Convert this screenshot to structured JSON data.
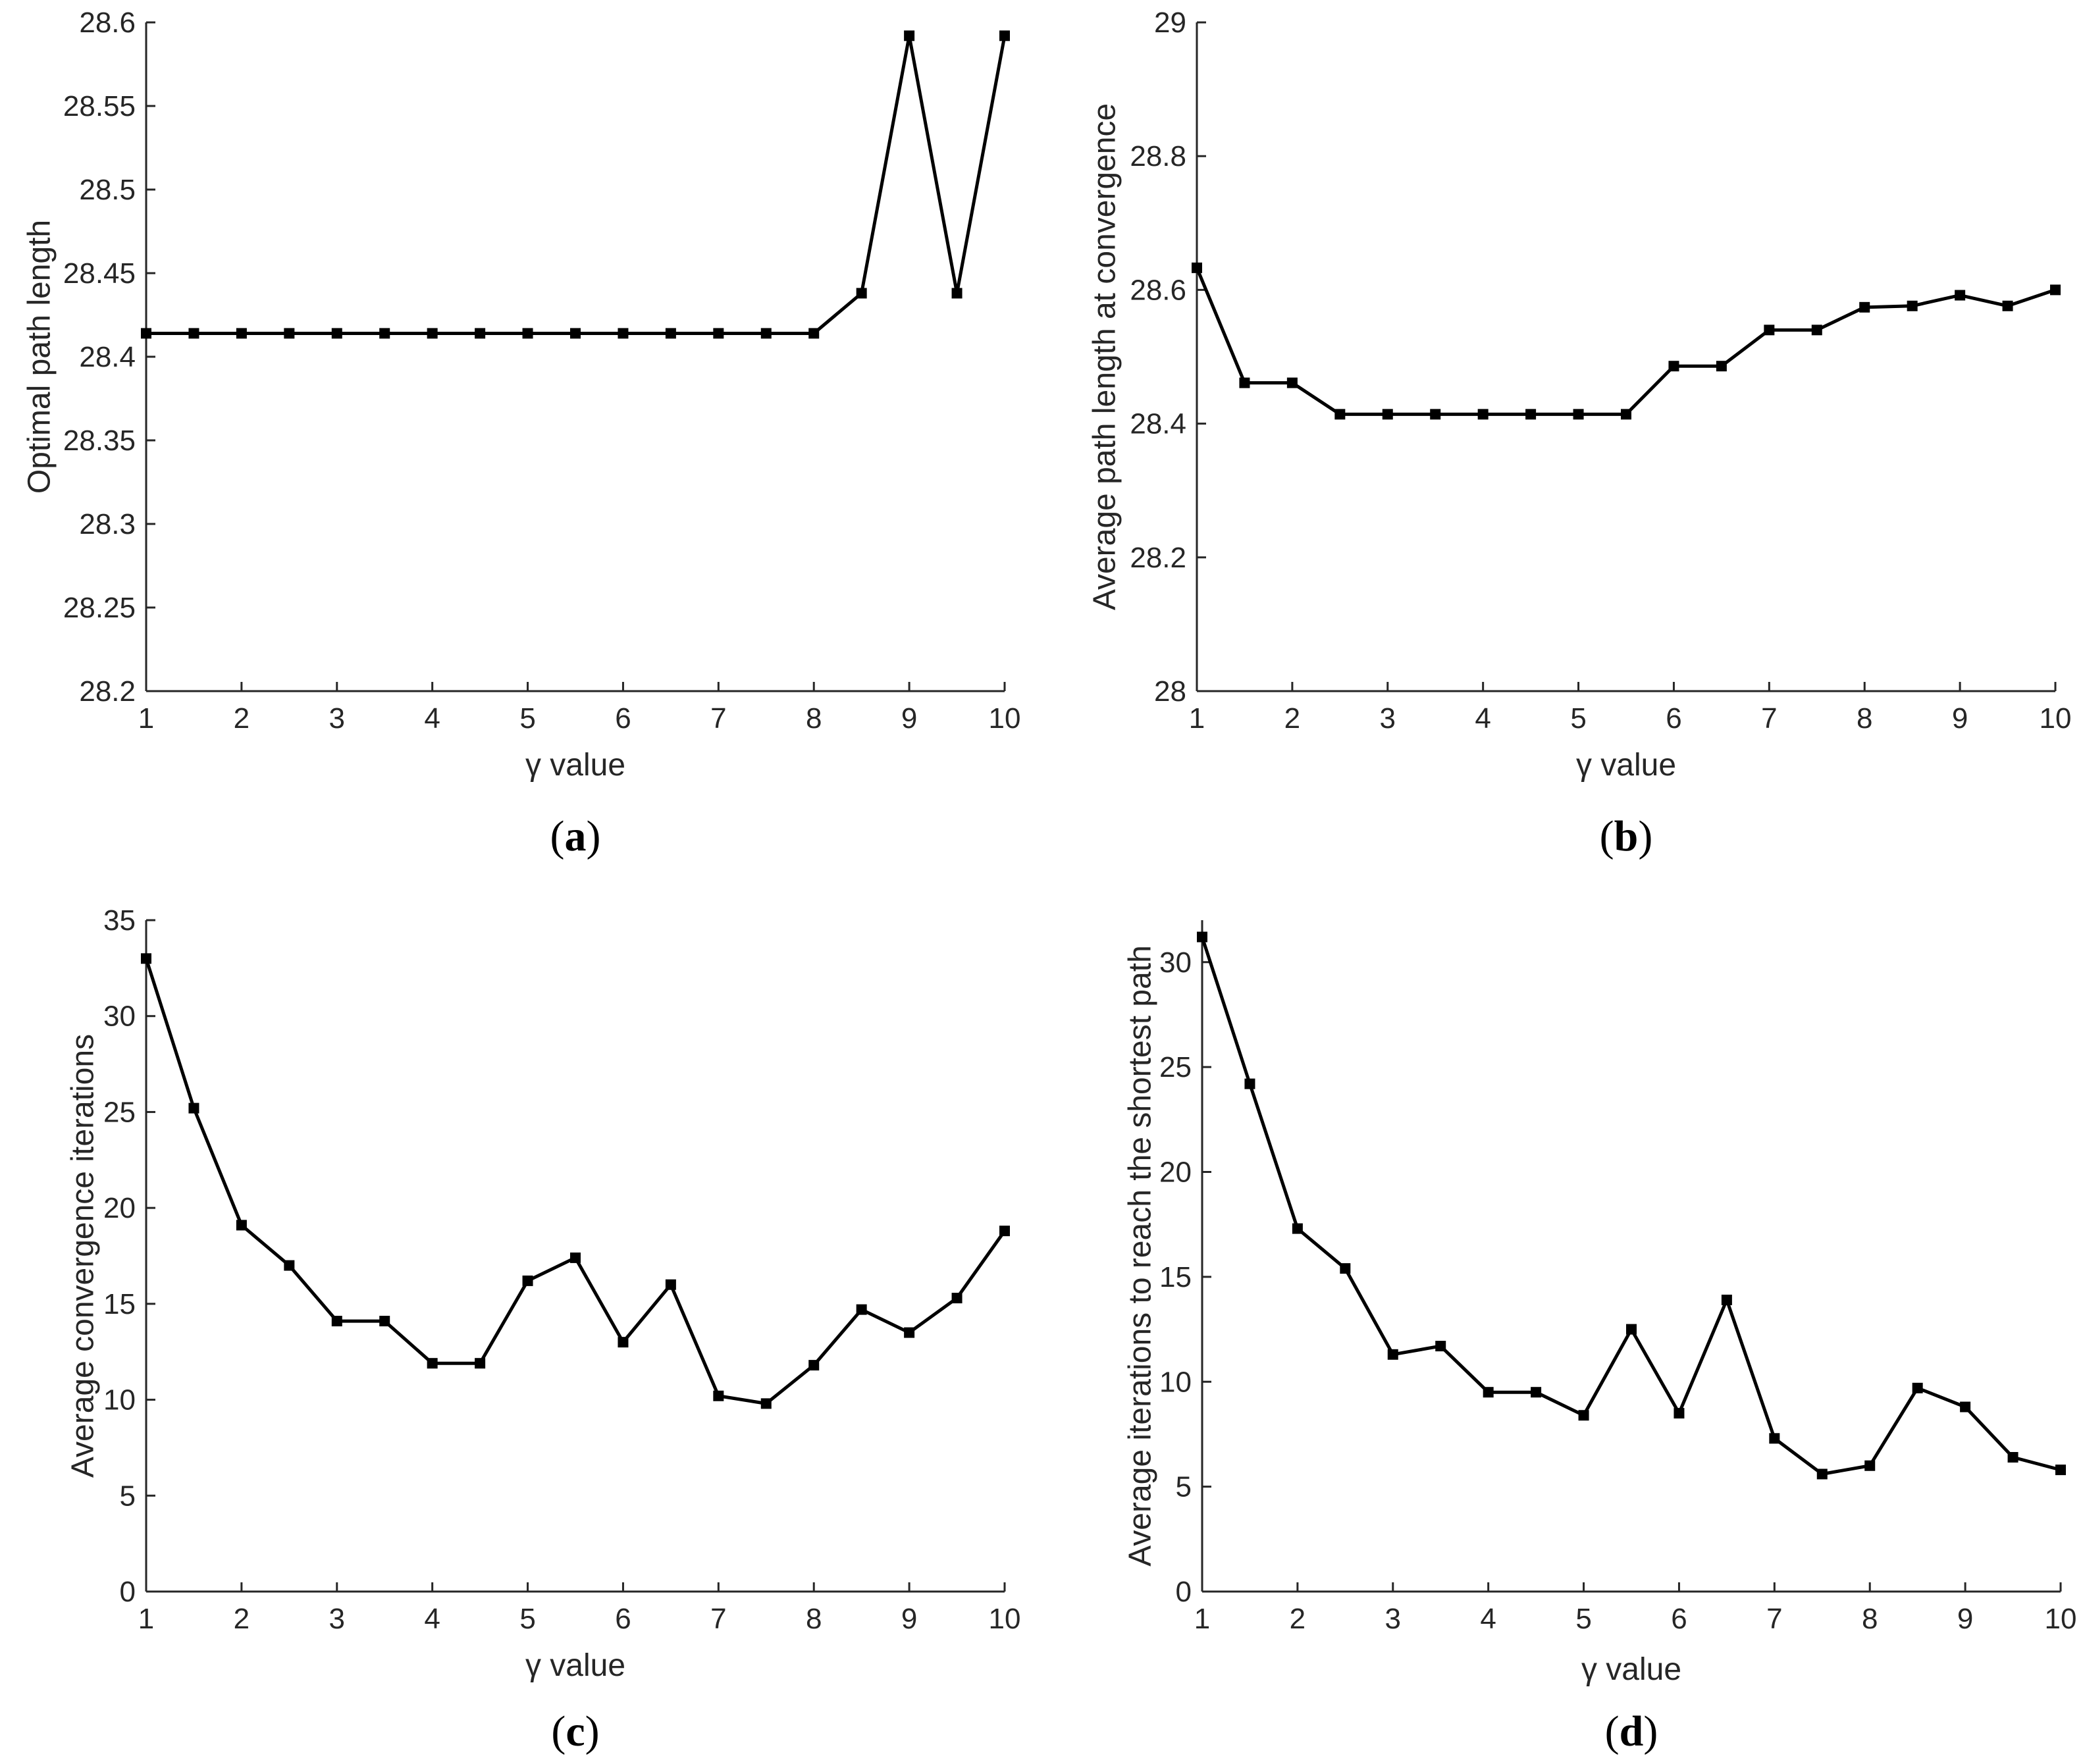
{
  "chart_data": [
    {
      "panel": "a",
      "panel_label": "(a)",
      "type": "line",
      "xlabel": "γ value",
      "ylabel": "Optimal path length",
      "xlim": [
        1,
        10
      ],
      "ylim": [
        28.2,
        28.6
      ],
      "xticks": [
        1,
        2,
        3,
        4,
        5,
        6,
        7,
        8,
        9,
        10
      ],
      "xtick_labels": [
        "1",
        "2",
        "3",
        "4",
        "5",
        "6",
        "7",
        "8",
        "9",
        "10"
      ],
      "yticks": [
        28.2,
        28.25,
        28.3,
        28.35,
        28.4,
        28.45,
        28.5,
        28.55,
        28.6
      ],
      "ytick_labels": [
        "28.2",
        "28.25",
        "28.3",
        "28.35",
        "28.4",
        "28.45",
        "28.5",
        "28.55",
        "28.6"
      ],
      "grid": false,
      "marker": "square",
      "x": [
        1,
        1.5,
        2,
        2.5,
        3,
        3.5,
        4,
        4.5,
        5,
        5.5,
        6,
        6.5,
        7,
        7.5,
        8,
        8.5,
        9,
        9.5,
        10
      ],
      "y": [
        28.414,
        28.414,
        28.414,
        28.414,
        28.414,
        28.414,
        28.414,
        28.414,
        28.414,
        28.414,
        28.414,
        28.414,
        28.414,
        28.414,
        28.414,
        28.438,
        28.592,
        28.438,
        28.592
      ]
    },
    {
      "panel": "b",
      "panel_label": "(b)",
      "type": "line",
      "xlabel": "γ value",
      "ylabel": "Average path length at convergence",
      "xlim": [
        1,
        10
      ],
      "ylim": [
        28,
        29
      ],
      "xticks": [
        1,
        2,
        3,
        4,
        5,
        6,
        7,
        8,
        9,
        10
      ],
      "xtick_labels": [
        "1",
        "2",
        "3",
        "4",
        "5",
        "6",
        "7",
        "8",
        "9",
        "10"
      ],
      "yticks": [
        28,
        28.2,
        28.4,
        28.6,
        28.8,
        29
      ],
      "ytick_labels": [
        "28",
        "28.2",
        "28.4",
        "28.6",
        "28.8",
        "29"
      ],
      "grid": false,
      "marker": "square",
      "x": [
        1,
        1.5,
        2,
        2.5,
        3,
        3.5,
        4,
        4.5,
        5,
        5.5,
        6,
        6.5,
        7,
        7.5,
        8,
        8.5,
        9,
        9.5,
        10
      ],
      "y": [
        28.633,
        28.461,
        28.461,
        28.414,
        28.414,
        28.414,
        28.414,
        28.414,
        28.414,
        28.414,
        28.486,
        28.486,
        28.54,
        28.54,
        28.574,
        28.576,
        28.592,
        28.576,
        28.6
      ]
    },
    {
      "panel": "c",
      "panel_label": "(c)",
      "type": "line",
      "xlabel": "γ value",
      "ylabel": "Average convergence iterations",
      "xlim": [
        1,
        10
      ],
      "ylim": [
        0,
        35
      ],
      "xticks": [
        1,
        2,
        3,
        4,
        5,
        6,
        7,
        8,
        9,
        10
      ],
      "xtick_labels": [
        "1",
        "2",
        "3",
        "4",
        "5",
        "6",
        "7",
        "8",
        "9",
        "10"
      ],
      "yticks": [
        0,
        5,
        10,
        15,
        20,
        25,
        30,
        35
      ],
      "ytick_labels": [
        "0",
        "5",
        "10",
        "15",
        "20",
        "25",
        "30",
        "35"
      ],
      "grid": false,
      "marker": "square",
      "x": [
        1,
        1.5,
        2,
        2.5,
        3,
        3.5,
        4,
        4.5,
        5,
        5.5,
        6,
        6.5,
        7,
        7.5,
        8,
        8.5,
        9,
        9.5,
        10
      ],
      "y": [
        33.0,
        25.2,
        19.1,
        17.0,
        14.1,
        14.1,
        11.9,
        11.9,
        16.2,
        17.4,
        13.0,
        16.0,
        10.2,
        9.8,
        11.8,
        14.7,
        13.5,
        15.3,
        18.8
      ]
    },
    {
      "panel": "d",
      "panel_label": "(d)",
      "type": "line",
      "xlabel": "γ value",
      "ylabel": "Average iterations to reach the shortest path",
      "xlim": [
        1,
        10
      ],
      "ylim": [
        0,
        32
      ],
      "xticks": [
        1,
        2,
        3,
        4,
        5,
        6,
        7,
        8,
        9,
        10
      ],
      "xtick_labels": [
        "1",
        "2",
        "3",
        "4",
        "5",
        "6",
        "7",
        "8",
        "9",
        "10"
      ],
      "yticks": [
        0,
        5,
        10,
        15,
        20,
        25,
        30
      ],
      "ytick_labels": [
        "0",
        "5",
        "10",
        "15",
        "20",
        "25",
        "30"
      ],
      "grid": false,
      "marker": "square",
      "x": [
        1,
        1.5,
        2,
        2.5,
        3,
        3.5,
        4,
        4.5,
        5,
        5.5,
        6,
        6.5,
        7,
        7.5,
        8,
        8.5,
        9,
        9.5,
        10
      ],
      "y": [
        31.2,
        24.2,
        17.3,
        15.4,
        11.3,
        11.7,
        9.5,
        9.5,
        8.4,
        12.5,
        8.5,
        13.9,
        7.3,
        5.6,
        6.0,
        9.7,
        8.8,
        6.4,
        5.8
      ]
    }
  ]
}
